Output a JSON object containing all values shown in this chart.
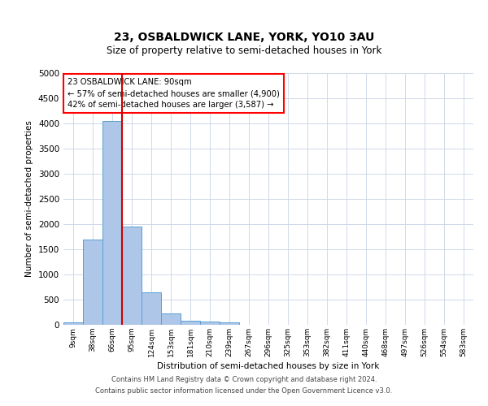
{
  "title1": "23, OSBALDWICK LANE, YORK, YO10 3AU",
  "title2": "Size of property relative to semi-detached houses in York",
  "xlabel": "Distribution of semi-detached houses by size in York",
  "ylabel": "Number of semi-detached properties",
  "footer1": "Contains HM Land Registry data © Crown copyright and database right 2024.",
  "footer2": "Contains public sector information licensed under the Open Government Licence v3.0.",
  "bin_labels": [
    "9sqm",
    "38sqm",
    "66sqm",
    "95sqm",
    "124sqm",
    "153sqm",
    "181sqm",
    "210sqm",
    "239sqm",
    "267sqm",
    "296sqm",
    "325sqm",
    "353sqm",
    "382sqm",
    "411sqm",
    "440sqm",
    "468sqm",
    "497sqm",
    "526sqm",
    "554sqm",
    "583sqm"
  ],
  "bar_values": [
    50,
    1700,
    4050,
    1950,
    650,
    230,
    80,
    60,
    50,
    0,
    0,
    0,
    0,
    0,
    0,
    0,
    0,
    0,
    0,
    0,
    0
  ],
  "bar_color": "#aec6e8",
  "bar_edge_color": "#5a9fd4",
  "vline_color": "#cc0000",
  "vline_x_index": 2.5,
  "ylim": [
    0,
    5000
  ],
  "yticks": [
    0,
    500,
    1000,
    1500,
    2000,
    2500,
    3000,
    3500,
    4000,
    4500,
    5000
  ],
  "background_color": "#ffffff",
  "grid_color": "#d0d8e8",
  "annotation_text_line1": "23 OSBALDWICK LANE: 90sqm",
  "annotation_text_line2": "← 57% of semi-detached houses are smaller (4,900)",
  "annotation_text_line3": "42% of semi-detached houses are larger (3,587) →"
}
